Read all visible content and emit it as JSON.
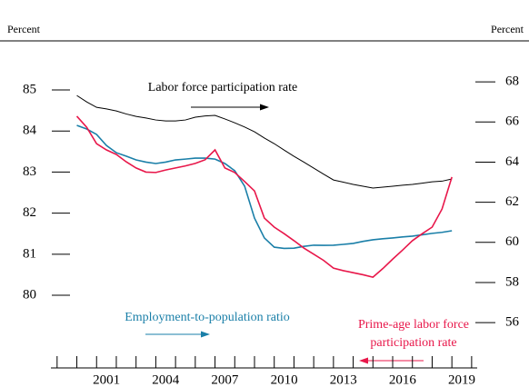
{
  "chart_data": {
    "type": "line",
    "y_axis_label": "Percent",
    "y2_axis_label": "Percent",
    "x": [
      2000,
      2000.5,
      2001,
      2001.5,
      2002,
      2002.5,
      2003,
      2003.5,
      2004,
      2004.5,
      2005,
      2005.5,
      2006,
      2006.5,
      2007,
      2007.5,
      2008,
      2008.5,
      2009,
      2009.5,
      2010,
      2010.5,
      2011,
      2011.5,
      2012,
      2012.5,
      2013,
      2013.5,
      2014,
      2014.5,
      2015,
      2015.5,
      2016,
      2016.5,
      2017,
      2017.5,
      2018,
      2018.5,
      2019
    ],
    "series": [
      {
        "name": "Labor force participation rate",
        "color": "#000000",
        "axis": "y2",
        "values": [
          67.32,
          67.0,
          66.73,
          66.65,
          66.55,
          66.4,
          66.28,
          66.2,
          66.1,
          66.05,
          66.05,
          66.1,
          66.24,
          66.3,
          66.33,
          66.15,
          65.96,
          65.75,
          65.51,
          65.2,
          64.92,
          64.6,
          64.29,
          64.0,
          63.7,
          63.4,
          63.11,
          63.0,
          62.89,
          62.8,
          62.71,
          62.75,
          62.8,
          62.85,
          62.89,
          62.95,
          63.02,
          63.05,
          63.16
        ]
      },
      {
        "name": "Employment-to-population ratio",
        "color": "#1a7fa8",
        "axis": "y2",
        "values": [
          65.83,
          65.65,
          65.38,
          64.83,
          64.47,
          64.3,
          64.11,
          64.0,
          63.93,
          64.0,
          64.11,
          64.15,
          64.2,
          64.2,
          64.15,
          63.93,
          63.57,
          62.8,
          61.21,
          60.22,
          59.76,
          59.7,
          59.71,
          59.8,
          59.86,
          59.85,
          59.86,
          59.9,
          59.95,
          60.05,
          60.13,
          60.18,
          60.22,
          60.27,
          60.31,
          60.38,
          60.45,
          60.5,
          60.58
        ]
      },
      {
        "name": "Prime-age labor force participation rate",
        "color": "#e8174a",
        "axis": "y",
        "values": [
          84.36,
          84.09,
          83.69,
          83.54,
          83.43,
          83.25,
          83.1,
          83.0,
          82.99,
          83.05,
          83.1,
          83.15,
          83.21,
          83.3,
          83.54,
          83.1,
          82.99,
          82.77,
          82.54,
          81.88,
          81.66,
          81.5,
          81.33,
          81.15,
          81.0,
          80.85,
          80.66,
          80.6,
          80.55,
          80.5,
          80.44,
          80.65,
          80.88,
          81.1,
          81.33,
          81.5,
          81.66,
          82.1,
          82.88
        ]
      }
    ],
    "annotations": [
      "Labor force participation rate",
      "Employment-to-population ratio",
      "Prime-age labor force",
      "participation rate"
    ],
    "xlim": [
      1998.7,
      2020.3
    ],
    "xticks": [
      2001,
      2004,
      2007,
      2010,
      2013,
      2016,
      2019
    ],
    "xminorticks": [
      1999,
      2000,
      2001,
      2002,
      2003,
      2004,
      2005,
      2006,
      2007,
      2008,
      2009,
      2010,
      2011,
      2012,
      2013,
      2014,
      2015,
      2016,
      2017,
      2018,
      2019,
      2020
    ],
    "ylim": [
      78.2,
      85.5
    ],
    "yticks": [
      80,
      81,
      82,
      83,
      84,
      85
    ],
    "y2lim": [
      53.68,
      68.62
    ],
    "y2ticks": [
      56,
      58,
      60,
      62,
      64,
      66,
      68
    ]
  }
}
